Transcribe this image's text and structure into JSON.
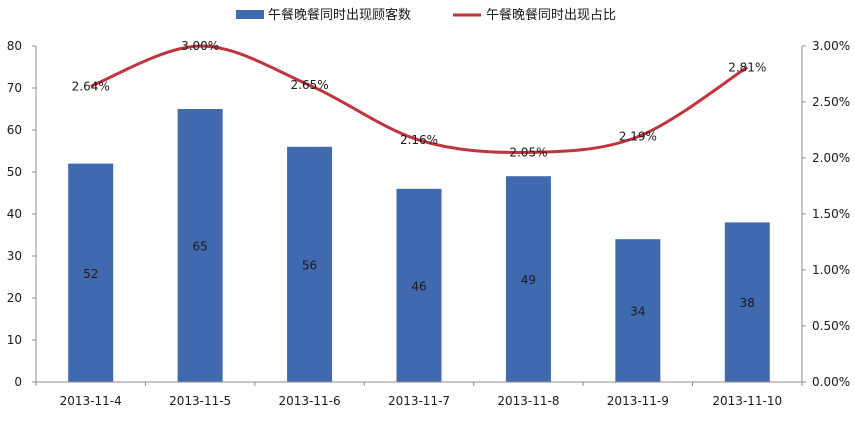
{
  "chart_data": {
    "type": "bar",
    "categories": [
      "2013-11-4",
      "2013-11-5",
      "2013-11-6",
      "2013-11-7",
      "2013-11-8",
      "2013-11-9",
      "2013-11-10"
    ],
    "series": [
      {
        "name": "午餐晚餐同时出现顾客数",
        "chart_type": "bar",
        "axis": "left",
        "values": [
          52,
          65,
          56,
          46,
          49,
          34,
          38
        ],
        "labels": [
          "52",
          "65",
          "56",
          "46",
          "49",
          "34",
          "38"
        ],
        "color": "#4169B0"
      },
      {
        "name": "午餐晚餐同时出现占比",
        "chart_type": "line",
        "axis": "right",
        "smooth": true,
        "values": [
          2.64,
          3.0,
          2.65,
          2.16,
          2.05,
          2.19,
          2.81
        ],
        "labels": [
          "2.64%",
          "3.00%",
          "2.65%",
          "2.16%",
          "2.05%",
          "2.19%",
          "2.81%"
        ],
        "color": "#C0353C"
      }
    ],
    "y_left": {
      "min": 0,
      "max": 80,
      "ticks": [
        "0",
        "10",
        "20",
        "30",
        "40",
        "50",
        "60",
        "70",
        "80"
      ]
    },
    "y_right": {
      "min": 0,
      "max": 3,
      "ticks": [
        "0.00%",
        "0.50%",
        "1.00%",
        "1.50%",
        "2.00%",
        "2.50%",
        "3.00%"
      ]
    },
    "grid": false,
    "legend_position": "top-center"
  }
}
